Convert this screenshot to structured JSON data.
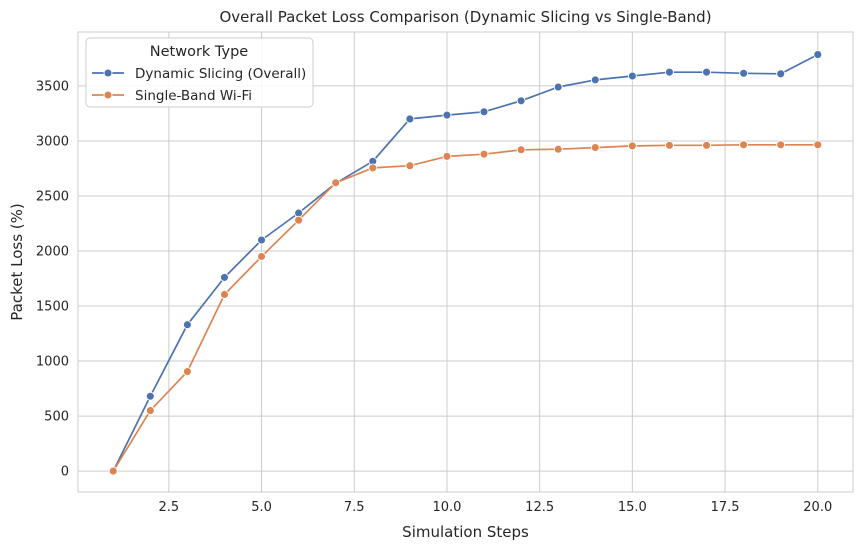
{
  "chart_data": {
    "type": "line",
    "title": "Overall Packet Loss Comparison (Dynamic Slicing vs Single-Band)",
    "xlabel": "Simulation Steps",
    "ylabel": "Packet Loss (%)",
    "xlim": [
      0.05,
      20.95
    ],
    "ylim": [
      -190,
      3990
    ],
    "xticks": [
      2.5,
      5.0,
      7.5,
      10.0,
      12.5,
      15.0,
      17.5,
      20.0
    ],
    "xtick_labels": [
      "2.5",
      "5.0",
      "7.5",
      "10.0",
      "12.5",
      "15.0",
      "17.5",
      "20.0"
    ],
    "yticks": [
      0,
      500,
      1000,
      1500,
      2000,
      2500,
      3000,
      3500
    ],
    "ytick_labels": [
      "0",
      "500",
      "1000",
      "1500",
      "2000",
      "2500",
      "3000",
      "3500"
    ],
    "grid": true,
    "legend": {
      "title": "Network Type",
      "placement": "top-left"
    },
    "x": [
      1,
      2,
      3,
      4,
      5,
      6,
      7,
      8,
      9,
      10,
      11,
      12,
      13,
      14,
      15,
      16,
      17,
      18,
      19,
      20
    ],
    "series": [
      {
        "name": "Dynamic Slicing (Overall)",
        "color": "#4c72b0",
        "values": [
          0,
          680,
          1330,
          1760,
          2100,
          2345,
          2615,
          2815,
          3200,
          3235,
          3265,
          3365,
          3490,
          3555,
          3590,
          3625,
          3625,
          3615,
          3610,
          3785
        ]
      },
      {
        "name": "Single-Band Wi-Fi",
        "color": "#dd8452",
        "values": [
          0,
          550,
          905,
          1605,
          1950,
          2280,
          2620,
          2755,
          2775,
          2860,
          2880,
          2920,
          2925,
          2940,
          2955,
          2960,
          2960,
          2965,
          2965,
          2965
        ]
      }
    ]
  }
}
